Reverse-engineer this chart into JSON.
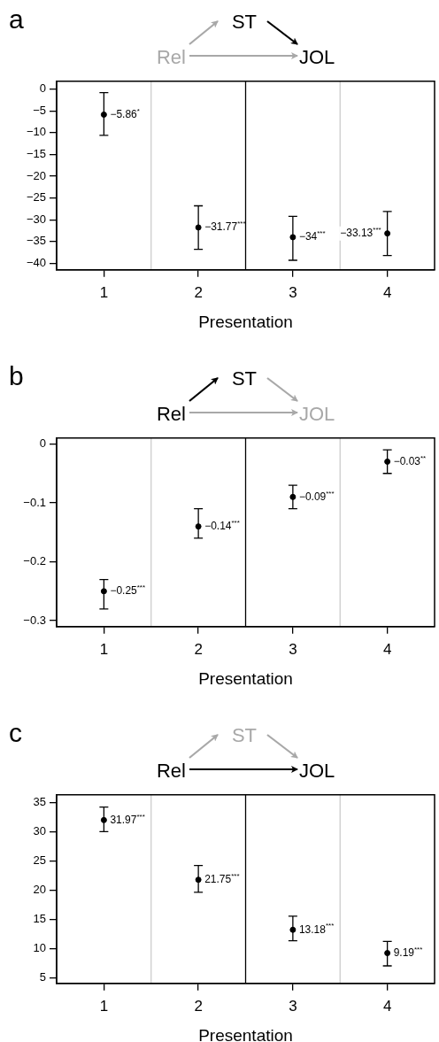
{
  "chart_data": [
    {
      "type": "scatter",
      "title": "a",
      "annotations": [
        "Rel",
        "ST",
        "JOL"
      ],
      "xlabel": "Presentation",
      "x": [
        1,
        2,
        3,
        4
      ],
      "xlim": [
        0.5,
        4.5
      ],
      "xticks": [
        1,
        2,
        3,
        4
      ],
      "ylim": [
        -41.5,
        1.8
      ],
      "yticks": [
        -40,
        -35,
        -30,
        -25,
        -20,
        -15,
        -10,
        -5,
        0
      ],
      "marker": "circle",
      "grid": false,
      "legend": false,
      "series": [
        {
          "color": "#000000",
          "values": [
            -5.86,
            -31.77,
            -34,
            -33.13
          ],
          "errors": [
            [
              -10.6,
              -0.8
            ],
            [
              -36.8,
              -26.8
            ],
            [
              -39.3,
              -29.2
            ],
            [
              -38.2,
              -28.1
            ]
          ],
          "value_labels": [
            "−5.86$^{*}$",
            "−31.77$^{***}$",
            "−34$^{***}$",
            "−33.13$^{***}$"
          ]
        }
      ],
      "ref_lines": [
        {
          "axis": "x",
          "value": 1.5,
          "color": "#cccccc"
        },
        {
          "axis": "x",
          "value": 2.5,
          "color": "#000000"
        },
        {
          "axis": "x",
          "value": 3.5,
          "color": "#cccccc"
        }
      ]
    },
    {
      "type": "scatter",
      "title": "b",
      "annotations": [
        "Rel",
        "ST",
        "JOL"
      ],
      "xlabel": "Presentation",
      "x": [
        1,
        2,
        3,
        4
      ],
      "xlim": [
        0.5,
        4.5
      ],
      "xticks": [
        1,
        2,
        3,
        4
      ],
      "ylim": [
        -0.31,
        0.01
      ],
      "yticks": [
        -0.3,
        -0.2,
        -0.1,
        0
      ],
      "marker": "circle",
      "grid": false,
      "legend": false,
      "series": [
        {
          "color": "#000000",
          "values": [
            -0.25,
            -0.14,
            -0.09,
            -0.03
          ],
          "errors": [
            [
              -0.28,
              -0.23
            ],
            [
              -0.16,
              -0.11
            ],
            [
              -0.11,
              -0.07
            ],
            [
              -0.05,
              -0.01
            ]
          ],
          "value_labels": [
            "−0.25$^{***}$",
            "−0.14$^{***}$",
            "−0.09$^{***}$",
            "−0.03$^{**}$"
          ]
        }
      ],
      "ref_lines": [
        {
          "axis": "x",
          "value": 1.5,
          "color": "#cccccc"
        },
        {
          "axis": "x",
          "value": 2.5,
          "color": "#000000"
        },
        {
          "axis": "x",
          "value": 3.5,
          "color": "#cccccc"
        }
      ]
    },
    {
      "type": "scatter",
      "title": "c",
      "annotations": [
        "Rel",
        "ST",
        "JOL"
      ],
      "xlabel": "Presentation",
      "x": [
        1,
        2,
        3,
        4
      ],
      "xlim": [
        0.5,
        4.5
      ],
      "xticks": [
        1,
        2,
        3,
        4
      ],
      "ylim": [
        4,
        36.3
      ],
      "yticks": [
        5,
        10,
        15,
        20,
        25,
        30,
        35
      ],
      "marker": "circle",
      "grid": false,
      "legend": false,
      "series": [
        {
          "color": "#000000",
          "values": [
            31.97,
            21.75,
            13.18,
            9.19
          ],
          "errors": [
            [
              30.0,
              34.2
            ],
            [
              19.6,
              24.2
            ],
            [
              11.3,
              15.5
            ],
            [
              7.0,
              11.2
            ]
          ],
          "value_labels": [
            "31.97$^{***}$",
            "21.75$^{***}$",
            "13.18$^{***}$",
            "9.19$^{***}$"
          ]
        }
      ],
      "ref_lines": [
        {
          "axis": "x",
          "value": 1.5,
          "color": "#cccccc"
        },
        {
          "axis": "x",
          "value": 2.5,
          "color": "#000000"
        },
        {
          "axis": "x",
          "value": 3.5,
          "color": "#cccccc"
        }
      ]
    }
  ]
}
